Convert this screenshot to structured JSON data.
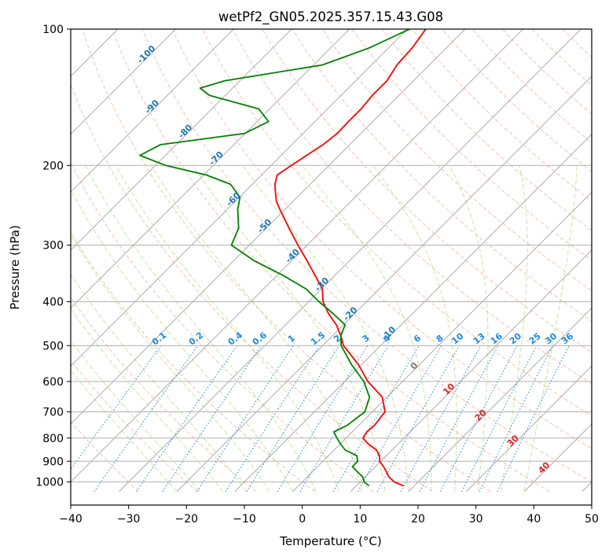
{
  "chart_data": {
    "type": "line",
    "title": "wetPf2_GN05.2025.357.15.43.G08",
    "xlabel": "Temperature (°C)",
    "ylabel": "Pressure (hPa)",
    "xlim": [
      -40,
      50
    ],
    "ylim": [
      1050,
      100
    ],
    "y_scale": "log",
    "x_ticks": [
      -40,
      -30,
      -20,
      -10,
      0,
      10,
      20,
      30,
      40,
      50
    ],
    "y_ticks": [
      100,
      200,
      300,
      400,
      500,
      600,
      700,
      800,
      900,
      1000
    ],
    "grid": true,
    "colors": {
      "temperature": "#ff0000",
      "dewpoint": "#008000",
      "isotherm": "#999999",
      "dry_adiabat": "#f4a582",
      "moist_adiabat": "#a6d96a",
      "mixing_ratio": "#1e88e5",
      "isotherm_label": "#1f77b4",
      "dry_adiabat_label": "#d62728"
    },
    "series": [
      {
        "values": [
          {
            "p": 100,
            "t": -56.8
          },
          {
            "p": 110,
            "t": -55.9
          },
          {
            "p": 120,
            "t": -55.6
          },
          {
            "p": 130,
            "t": -54.6
          },
          {
            "p": 140,
            "t": -54.6
          },
          {
            "p": 150,
            "t": -54.2
          },
          {
            "p": 160,
            "t": -54.2
          },
          {
            "p": 170,
            "t": -54.1
          },
          {
            "p": 180,
            "t": -54.6
          },
          {
            "p": 190,
            "t": -55.6
          },
          {
            "p": 200,
            "t": -56.5
          },
          {
            "p": 210,
            "t": -57.3
          },
          {
            "p": 220,
            "t": -56.1
          },
          {
            "p": 230,
            "t": -54.5
          },
          {
            "p": 240,
            "t": -52.9
          },
          {
            "p": 250,
            "t": -50.9
          },
          {
            "p": 275,
            "t": -46.1
          },
          {
            "p": 300,
            "t": -41.6
          },
          {
            "p": 325,
            "t": -37.3
          },
          {
            "p": 350,
            "t": -33.4
          },
          {
            "p": 375,
            "t": -29.8
          },
          {
            "p": 400,
            "t": -27.5
          },
          {
            "p": 425,
            "t": -24.5
          },
          {
            "p": 450,
            "t": -21.2
          },
          {
            "p": 475,
            "t": -18.6
          },
          {
            "p": 500,
            "t": -16.4
          },
          {
            "p": 550,
            "t": -10.6
          },
          {
            "p": 600,
            "t": -6.0
          },
          {
            "p": 650,
            "t": -0.8
          },
          {
            "p": 700,
            "t": 2.2
          },
          {
            "p": 750,
            "t": 2.7
          },
          {
            "p": 775,
            "t": 2.5
          },
          {
            "p": 800,
            "t": 2.9
          },
          {
            "p": 825,
            "t": 4.9
          },
          {
            "p": 850,
            "t": 7.3
          },
          {
            "p": 875,
            "t": 8.8
          },
          {
            "p": 900,
            "t": 9.8
          },
          {
            "p": 925,
            "t": 11.4
          },
          {
            "p": 950,
            "t": 12.8
          },
          {
            "p": 975,
            "t": 14.1
          },
          {
            "p": 1000,
            "t": 15.9
          },
          {
            "p": 1020,
            "t": 18.2
          }
        ]
      },
      {
        "values": [
          {
            "p": 100,
            "t": -59.6
          },
          {
            "p": 110,
            "t": -63.3
          },
          {
            "p": 120,
            "t": -68.5
          },
          {
            "p": 130,
            "t": -82.6
          },
          {
            "p": 135,
            "t": -85.6
          },
          {
            "p": 140,
            "t": -82.8
          },
          {
            "p": 150,
            "t": -71.9
          },
          {
            "p": 160,
            "t": -68.0
          },
          {
            "p": 170,
            "t": -70.1
          },
          {
            "p": 180,
            "t": -82.7
          },
          {
            "p": 190,
            "t": -84.4
          },
          {
            "p": 200,
            "t": -78.2
          },
          {
            "p": 210,
            "t": -69.5
          },
          {
            "p": 220,
            "t": -63.8
          },
          {
            "p": 235,
            "t": -59.9
          },
          {
            "p": 250,
            "t": -58.2
          },
          {
            "p": 275,
            "t": -54.8
          },
          {
            "p": 300,
            "t": -53.1
          },
          {
            "p": 325,
            "t": -46.4
          },
          {
            "p": 350,
            "t": -38.9
          },
          {
            "p": 375,
            "t": -32.6
          },
          {
            "p": 400,
            "t": -28.2
          },
          {
            "p": 425,
            "t": -23.7
          },
          {
            "p": 450,
            "t": -19.7
          },
          {
            "p": 475,
            "t": -18.6
          },
          {
            "p": 500,
            "t": -16.8
          },
          {
            "p": 550,
            "t": -11.8
          },
          {
            "p": 600,
            "t": -6.7
          },
          {
            "p": 650,
            "t": -3.0
          },
          {
            "p": 700,
            "t": -1.3
          },
          {
            "p": 750,
            "t": -2.0
          },
          {
            "p": 775,
            "t": -3.2
          },
          {
            "p": 800,
            "t": -1.6
          },
          {
            "p": 825,
            "t": 0.1
          },
          {
            "p": 850,
            "t": 1.9
          },
          {
            "p": 875,
            "t": 4.9
          },
          {
            "p": 900,
            "t": 6.0
          },
          {
            "p": 925,
            "t": 6.0
          },
          {
            "p": 950,
            "t": 7.8
          },
          {
            "p": 975,
            "t": 9.6
          },
          {
            "p": 1000,
            "t": 10.7
          },
          {
            "p": 1020,
            "t": 12.2
          }
        ]
      }
    ],
    "isotherm_labels": [
      -100,
      -90,
      -80,
      -70,
      -60,
      -50,
      -40,
      -30,
      -20,
      -10,
      0,
      10,
      20,
      30,
      40
    ],
    "mixing_ratio_labels": [
      "0.1",
      "0.2",
      "0.4",
      "0.6",
      "1",
      "1.5",
      "2",
      "3",
      "4",
      "6",
      "8",
      "10",
      "13",
      "16",
      "20",
      "25",
      "30",
      "36"
    ]
  }
}
